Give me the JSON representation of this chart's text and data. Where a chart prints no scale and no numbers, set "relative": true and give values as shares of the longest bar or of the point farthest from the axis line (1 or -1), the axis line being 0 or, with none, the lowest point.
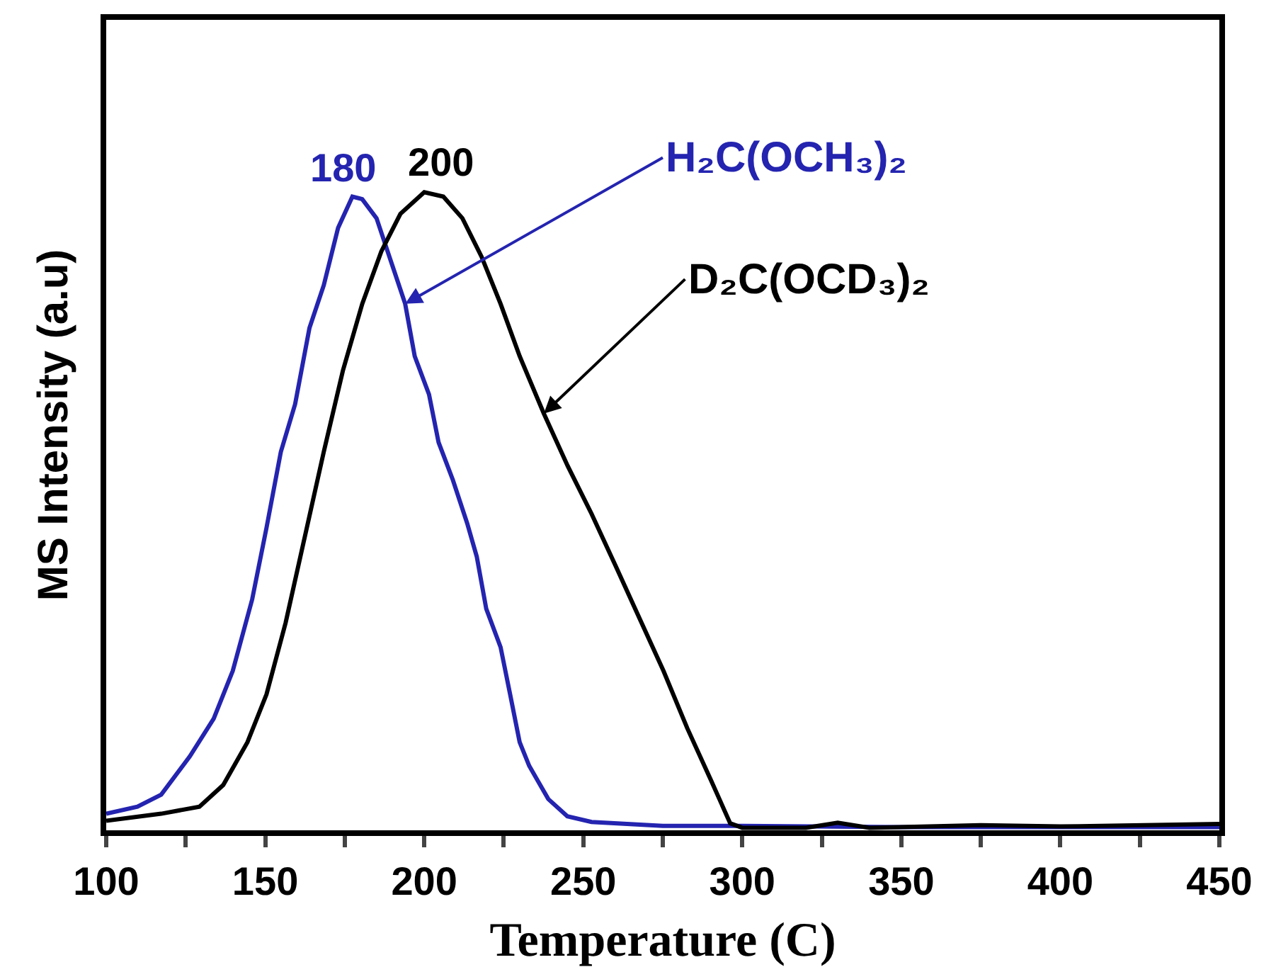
{
  "chart_data": {
    "type": "line",
    "relative": true,
    "xlabel": "Temperature (C)",
    "ylabel": "MS Intensity (a.u)",
    "xlim": [
      100,
      450
    ],
    "xticks": [
      100,
      {
        "value": 125,
        "label": null
      },
      150,
      {
        "value": 175,
        "label": null
      },
      200,
      {
        "value": 225,
        "label": null
      },
      250,
      {
        "value": 275,
        "label": null
      },
      300,
      {
        "value": 325,
        "label": null
      },
      350,
      {
        "value": 375,
        "label": null
      },
      400,
      {
        "value": 425,
        "label": null
      },
      450
    ],
    "tick_labels": "x",
    "legend": false,
    "marker": "none",
    "line_style": "solid",
    "annotations": [
      {
        "text": "180",
        "x": 180,
        "y": 0.99
      },
      {
        "text": "200",
        "x": 200,
        "y": 1.0
      }
    ],
    "series": [
      {
        "name": "H₂C(OCH₃)₂",
        "color": "#2424b0",
        "x": [
          100,
          109.8,
          117.3,
          126.3,
          133.8,
          139.8,
          145.9,
          150.4,
          154.9,
          159.4,
          163.9,
          168.4,
          172.9,
          177.4,
          180.5,
          185,
          189.5,
          194,
          197,
          201.5,
          204.5,
          209,
          213.5,
          216.5,
          219.5,
          224,
          227,
          230,
          233,
          239,
          245,
          252.6,
          275,
          300,
          350,
          400,
          450
        ],
        "values": [
          0.026,
          0.037,
          0.056,
          0.116,
          0.175,
          0.25,
          0.362,
          0.474,
          0.593,
          0.668,
          0.787,
          0.854,
          0.944,
          0.993,
          0.989,
          0.959,
          0.892,
          0.825,
          0.743,
          0.683,
          0.608,
          0.549,
          0.481,
          0.429,
          0.347,
          0.287,
          0.213,
          0.138,
          0.101,
          0.049,
          0.022,
          0.013,
          0.007,
          0.007,
          0.005,
          0.005,
          0.005
        ]
      },
      {
        "name": "D₂C(OCD₃)₂",
        "color": "#000000",
        "x": [
          100,
          117.3,
          129.3,
          136.8,
          144.4,
          150.4,
          156.4,
          162.4,
          168.4,
          174.4,
          180.5,
          186.5,
          192.5,
          200,
          206,
          212,
          218,
          224,
          230,
          237.6,
          245.1,
          252.6,
          260.2,
          267.7,
          275.2,
          282.7,
          290.2,
          296.2,
          300,
          320,
          330,
          340,
          375,
          400,
          450
        ],
        "values": [
          0.015,
          0.026,
          0.037,
          0.071,
          0.138,
          0.213,
          0.325,
          0.459,
          0.593,
          0.72,
          0.825,
          0.907,
          0.966,
          1.0,
          0.993,
          0.959,
          0.899,
          0.825,
          0.743,
          0.653,
          0.571,
          0.496,
          0.414,
          0.332,
          0.25,
          0.16,
          0.078,
          0.011,
          0.004,
          0.004,
          0.012,
          0.004,
          0.008,
          0.006,
          0.01
        ]
      }
    ]
  }
}
